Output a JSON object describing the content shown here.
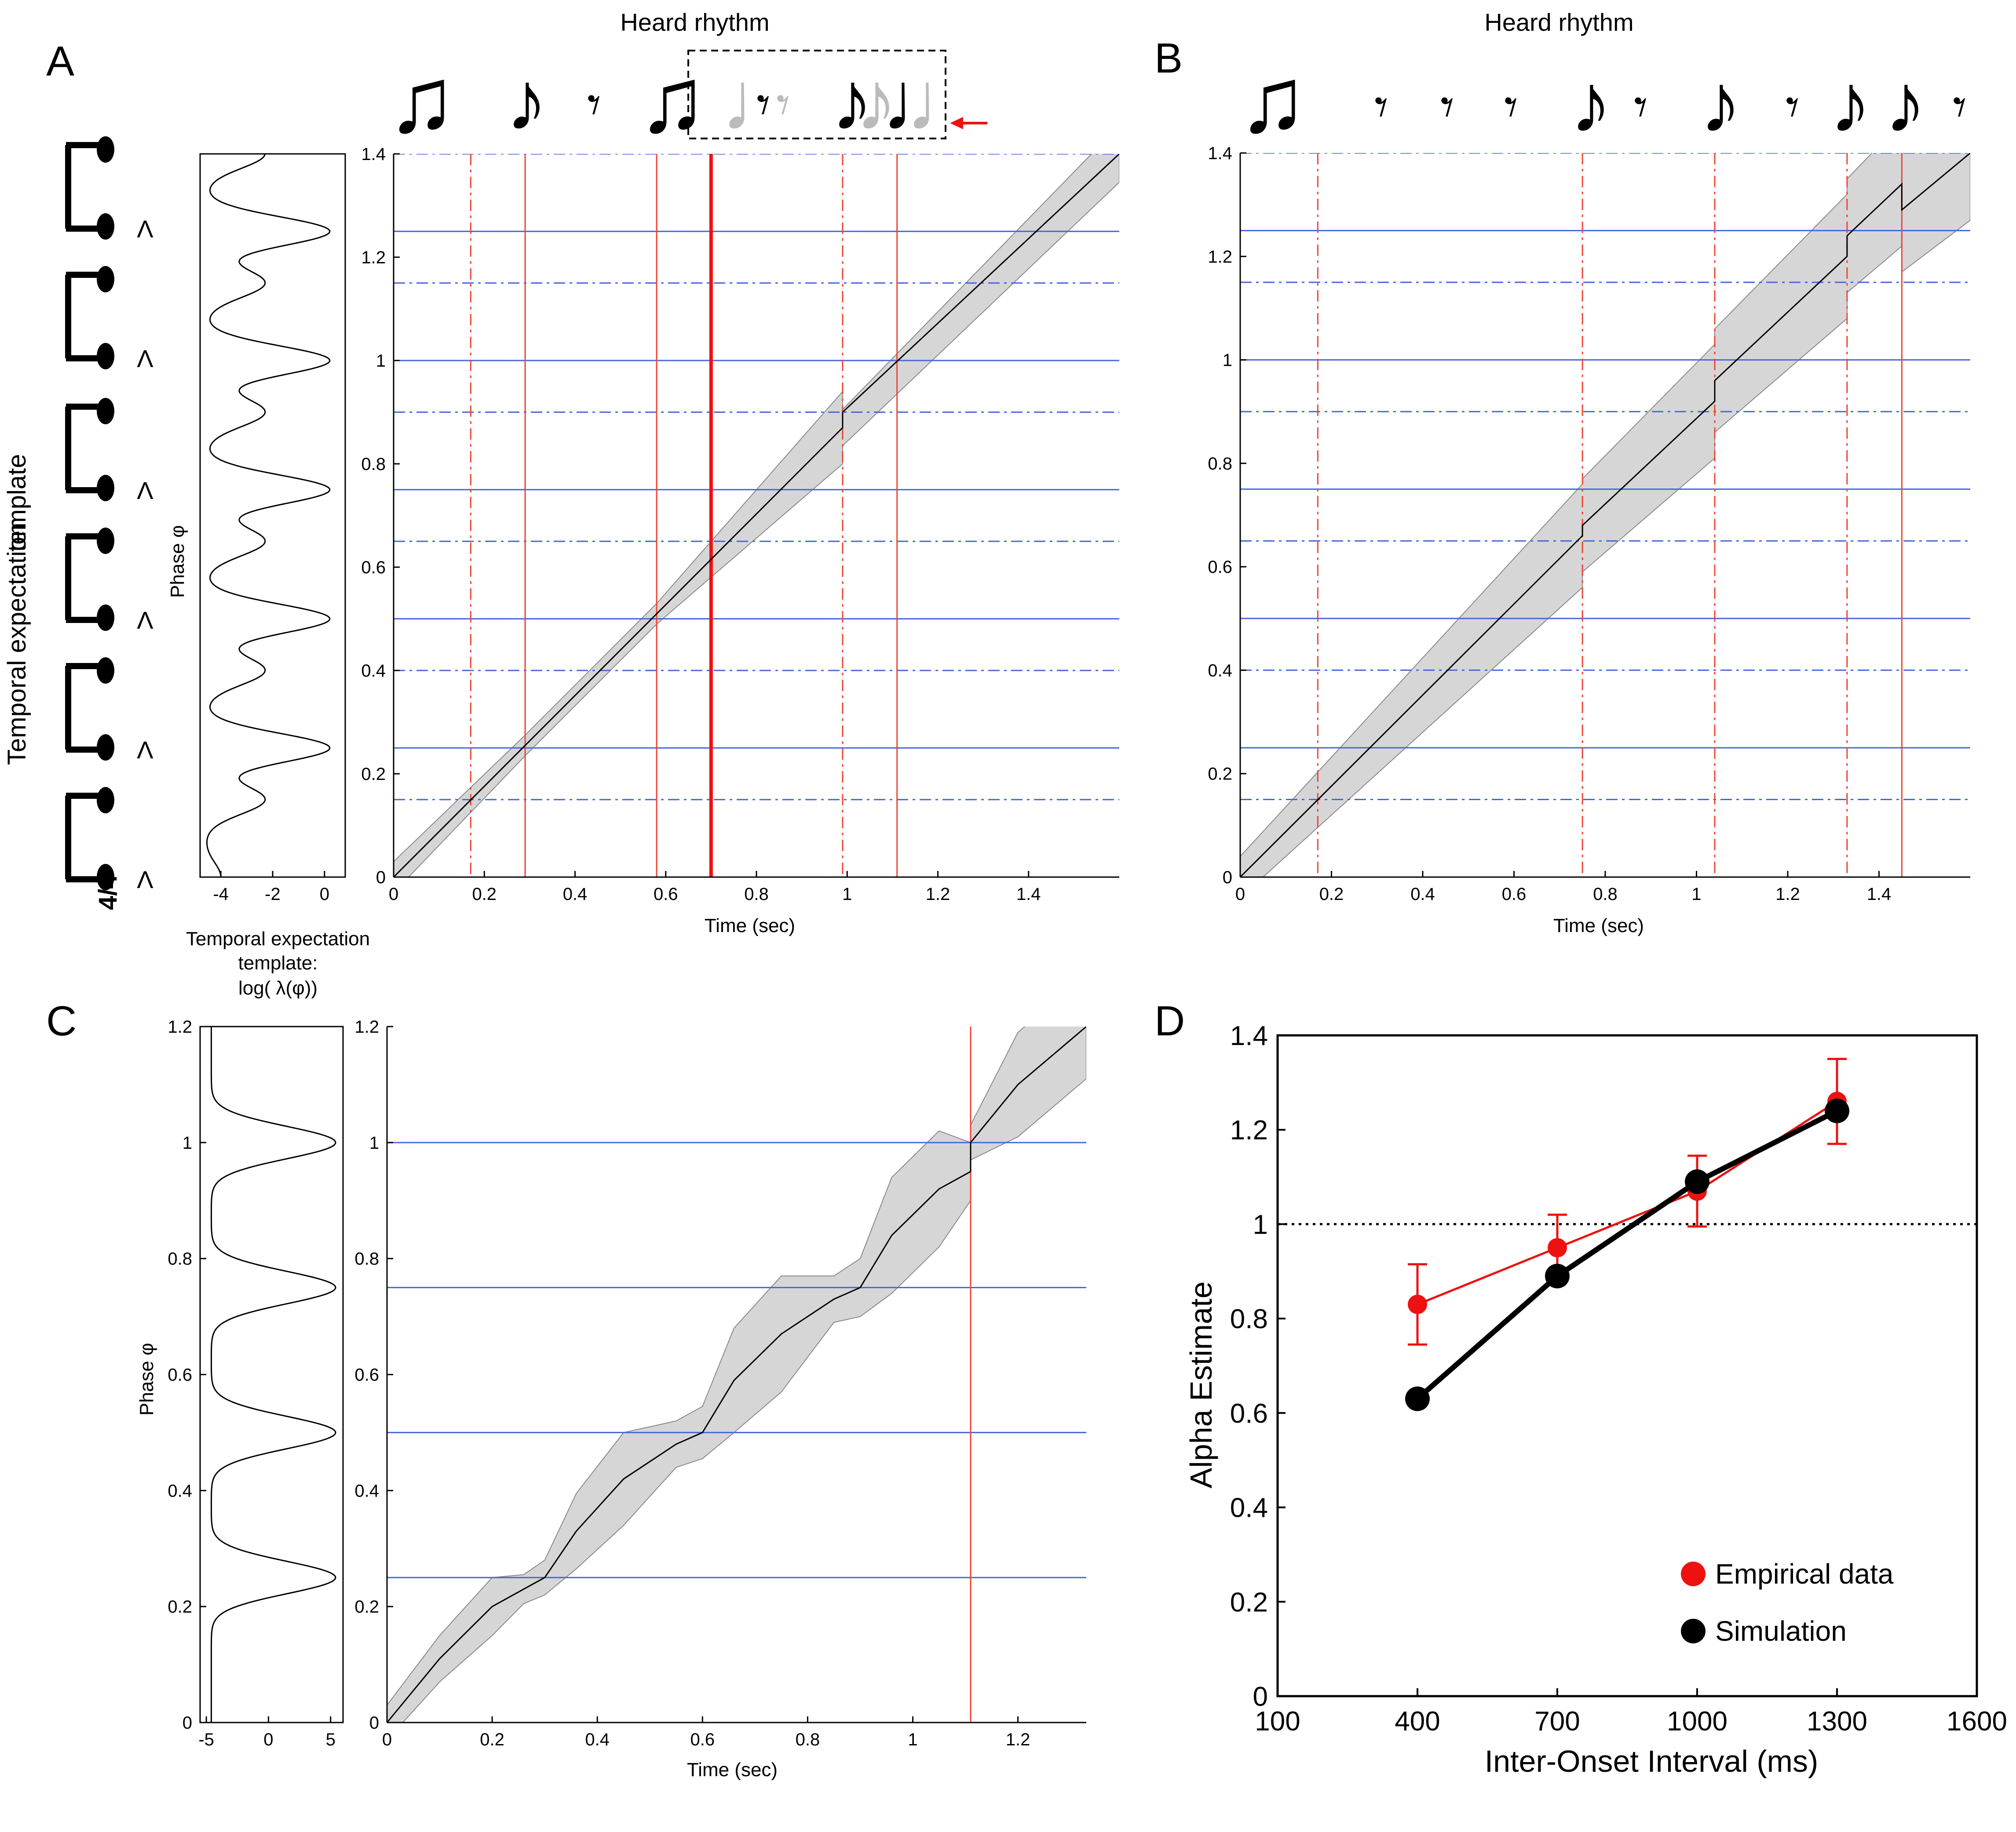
{
  "figure": {
    "panel_labels": [
      "A",
      "B",
      "C",
      "D"
    ],
    "note_glyphs": {
      "eighth": "♪",
      "beamed": "♫",
      "rest": "𝄾",
      "quarter": "♩",
      "accent": "Λ",
      "time_sig": "4/4"
    }
  },
  "chart_data": [
    {
      "id": "A",
      "type": "line",
      "title": "Heard rhythm",
      "xlabel": "Time (sec)",
      "ylabel": "Phase φ",
      "xlim": [
        0,
        1.6
      ],
      "ylim": [
        0,
        1.4
      ],
      "xticks": [
        "0",
        "0.2",
        "0.4",
        "0.6",
        "0.8",
        "1",
        "1.2",
        "1.4"
      ],
      "yticks": [
        "0",
        "0.2",
        "0.4",
        "0.6",
        "0.8",
        "1",
        "1.2",
        "1.4"
      ],
      "hlines_solid": [
        0.25,
        0.5,
        0.75,
        1.0,
        1.25
      ],
      "hlines_dashed": [
        0.15,
        0.4,
        0.65,
        0.9,
        1.15,
        1.4
      ],
      "vlines_solid": [
        0,
        0.29,
        0.58,
        1.11
      ],
      "vlines_thick": [
        0.7
      ],
      "vlines_dashed": [
        0.17,
        0.99
      ],
      "phase_line": {
        "x": [
          0,
          0.99,
          0.99,
          1.6
        ],
        "y": [
          0,
          0.87,
          0.9,
          1.4
        ]
      },
      "band": {
        "x": [
          0,
          0.29,
          0.58,
          0.99,
          0.99,
          1.6
        ],
        "half_width": [
          0.03,
          0.02,
          0.02,
          0.07,
          0.035,
          0.055
        ]
      },
      "template": {
        "xlabel": "Temporal expectation template: log( λ(φ))",
        "xlabel_lines": [
          "Temporal expectation",
          "template:",
          "log( λ(φ))"
        ],
        "xticks": [
          "-4",
          "-2",
          "0"
        ],
        "xlim": [
          -4.8,
          0.8
        ],
        "peaks": [
          {
            "phi": 0.0,
            "amp": 0.6
          },
          {
            "phi": 0.15,
            "amp": 2.3
          },
          {
            "phi": 0.25,
            "amp": 4.8
          },
          {
            "phi": 0.4,
            "amp": 2.3
          },
          {
            "phi": 0.5,
            "amp": 4.8
          },
          {
            "phi": 0.65,
            "amp": 2.3
          },
          {
            "phi": 0.75,
            "amp": 4.8
          },
          {
            "phi": 0.9,
            "amp": 2.3
          },
          {
            "phi": 1.0,
            "amp": 4.8
          },
          {
            "phi": 1.15,
            "amp": 2.3
          },
          {
            "phi": 1.25,
            "amp": 4.8
          },
          {
            "phi": 1.4,
            "amp": 2.3
          }
        ]
      }
    },
    {
      "id": "B",
      "type": "line",
      "title": "Heard rhythm",
      "xlabel": "Time (sec)",
      "ylabel": "",
      "xlim": [
        0,
        1.6
      ],
      "ylim": [
        0,
        1.4
      ],
      "xticks": [
        "0",
        "0.2",
        "0.4",
        "0.6",
        "0.8",
        "1",
        "1.2",
        "1.4"
      ],
      "yticks": [
        "0",
        "0.2",
        "0.4",
        "0.6",
        "0.8",
        "1",
        "1.2",
        "1.4"
      ],
      "hlines_solid": [
        0.25,
        0.5,
        0.75,
        1.0,
        1.25
      ],
      "hlines_dashed": [
        0.15,
        0.4,
        0.65,
        0.9,
        1.15,
        1.4
      ],
      "vlines_solid": [
        0,
        1.45
      ],
      "vlines_dashed": [
        0.17,
        0.75,
        1.04,
        1.33
      ],
      "phase_line": {
        "x": [
          0,
          0.75,
          0.75,
          1.04,
          1.04,
          1.33,
          1.33,
          1.45,
          1.45,
          1.6
        ],
        "y": [
          0,
          0.66,
          0.68,
          0.92,
          0.96,
          1.2,
          1.24,
          1.34,
          1.29,
          1.4
        ]
      },
      "band": {
        "x": [
          0,
          0.75,
          0.75,
          1.04,
          1.04,
          1.33,
          1.33,
          1.45,
          1.45,
          1.6
        ],
        "half_width": [
          0.04,
          0.1,
          0.09,
          0.11,
          0.1,
          0.12,
          0.11,
          0.12,
          0.12,
          0.13
        ]
      },
      "template": null
    },
    {
      "id": "C",
      "type": "line",
      "title": "",
      "xlabel": "Time (sec)",
      "ylabel": "Phase φ",
      "xlim": [
        0,
        1.33
      ],
      "ylim": [
        0,
        1.2
      ],
      "xticks": [
        "0",
        "0.2",
        "0.4",
        "0.6",
        "0.8",
        "1",
        "1.2"
      ],
      "yticks": [
        "0",
        "0.2",
        "0.4",
        "0.6",
        "0.8",
        "1",
        "1.2"
      ],
      "hlines_solid": [
        0.25,
        0.5,
        0.75,
        1.0
      ],
      "hlines_dashed": [],
      "vlines_solid": [
        1.11
      ],
      "vlines_dashed": [],
      "phase_line": {
        "x": [
          0,
          0.1,
          0.2,
          0.26,
          0.3,
          0.36,
          0.45,
          0.55,
          0.6,
          0.66,
          0.75,
          0.85,
          0.9,
          0.96,
          1.05,
          1.11,
          1.11,
          1.2,
          1.33
        ],
        "y": [
          0,
          0.11,
          0.2,
          0.23,
          0.25,
          0.33,
          0.42,
          0.48,
          0.5,
          0.59,
          0.67,
          0.73,
          0.75,
          0.84,
          0.92,
          0.95,
          1.0,
          1.1,
          1.2
        ]
      },
      "band": {
        "x": [
          0,
          0.1,
          0.2,
          0.26,
          0.3,
          0.36,
          0.45,
          0.55,
          0.6,
          0.66,
          0.75,
          0.85,
          0.9,
          0.96,
          1.05,
          1.11,
          1.11,
          1.2,
          1.33
        ],
        "half_width": [
          0.03,
          0.04,
          0.05,
          0.025,
          0.03,
          0.065,
          0.08,
          0.04,
          0.045,
          0.09,
          0.1,
          0.04,
          0.05,
          0.1,
          0.1,
          0.05,
          0.03,
          0.09,
          0.09
        ]
      },
      "template": {
        "xlabel": "",
        "xticks": [
          "-5",
          "0",
          "5"
        ],
        "xlim": [
          -5.5,
          6
        ],
        "ylabel": "Phase φ",
        "peaks": [
          {
            "phi": 0.25,
            "amp": 10
          },
          {
            "phi": 0.5,
            "amp": 10
          },
          {
            "phi": 0.75,
            "amp": 10
          },
          {
            "phi": 1.0,
            "amp": 10
          }
        ]
      }
    },
    {
      "id": "D",
      "type": "line",
      "title": "",
      "xlabel": "Inter-Onset Interval (ms)",
      "ylabel": "Alpha Estimate",
      "xlim": [
        100,
        1600
      ],
      "ylim": [
        0,
        1.4
      ],
      "xticks": [
        "100",
        "400",
        "700",
        "1000",
        "1300",
        "1600"
      ],
      "yticks": [
        "0",
        "0.2",
        "0.4",
        "0.6",
        "0.8",
        "1",
        "1.2",
        "1.4"
      ],
      "reference_line": 1.0,
      "legend_position": "bottom-right",
      "x": [
        400,
        700,
        1000,
        1300
      ],
      "series": [
        {
          "name": "Empirical data",
          "color": "#ee1111",
          "values": [
            0.83,
            0.95,
            1.07,
            1.26
          ],
          "error": [
            0.085,
            0.07,
            0.075,
            0.09
          ]
        },
        {
          "name": "Simulation",
          "color": "#000000",
          "values": [
            0.63,
            0.89,
            1.09,
            1.24
          ]
        }
      ]
    }
  ]
}
